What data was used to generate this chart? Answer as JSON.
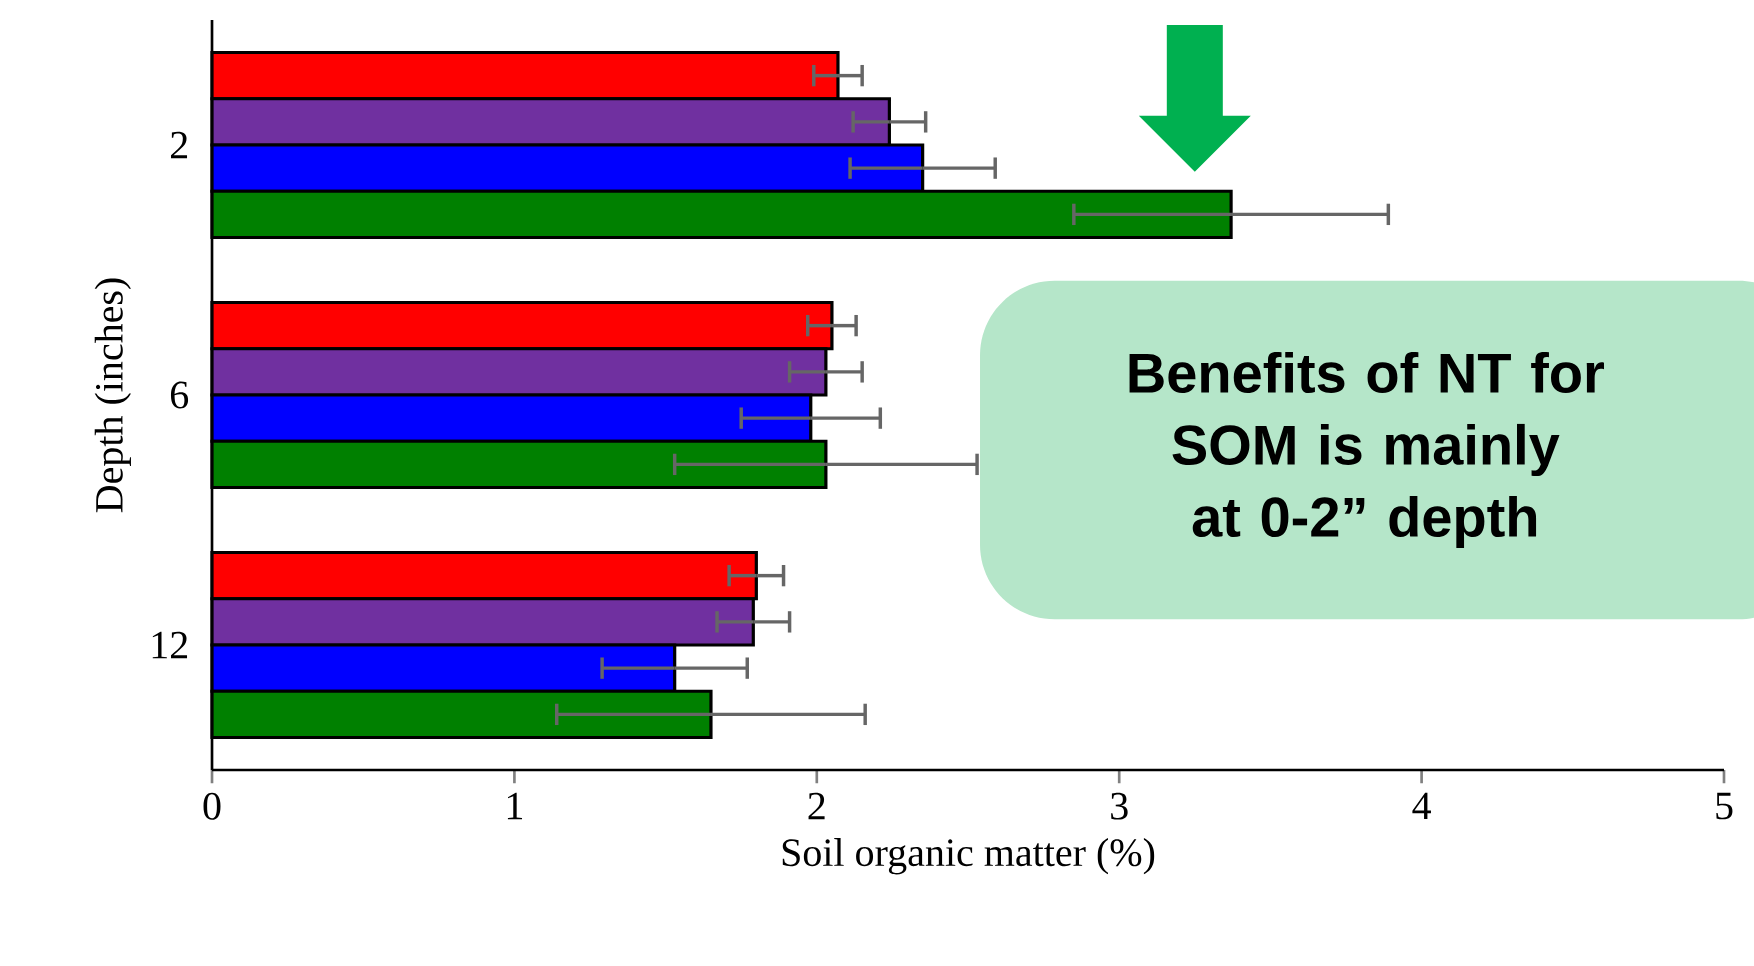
{
  "chart_data": {
    "type": "bar",
    "orientation": "horizontal",
    "xlabel": "Soil organic matter (%)",
    "ylabel": "Depth (inches)",
    "categories": [
      "2",
      "6",
      "12"
    ],
    "series": [
      {
        "color": "#ff0000",
        "values": [
          2.07,
          2.05,
          1.8
        ],
        "errors": [
          0.08,
          0.08,
          0.09
        ]
      },
      {
        "color": "#7030a0",
        "values": [
          2.24,
          2.03,
          1.79
        ],
        "errors": [
          0.12,
          0.12,
          0.12
        ]
      },
      {
        "color": "#0000ff",
        "values": [
          2.35,
          1.98,
          1.53
        ],
        "errors": [
          0.24,
          0.23,
          0.24
        ]
      },
      {
        "color": "#008000",
        "values": [
          3.37,
          2.03,
          1.65
        ],
        "errors": [
          0.52,
          0.5,
          0.51
        ]
      }
    ],
    "xlim": [
      0,
      5
    ],
    "xticks": [
      0,
      1,
      2,
      3,
      4,
      5
    ],
    "annotations": [
      "Benefits of NT for SOM is mainly at 0-2” depth"
    ]
  }
}
